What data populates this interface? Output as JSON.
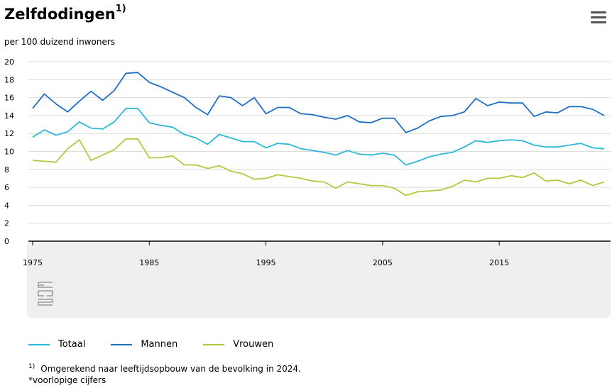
{
  "chart_data": {
    "type": "line",
    "title": "Zelfdodingen",
    "title_footnote_mark": "1)",
    "subtitle": "per 100 duizend inwoners",
    "x": [
      1975,
      1976,
      1977,
      1978,
      1979,
      1980,
      1981,
      1982,
      1983,
      1984,
      1985,
      1986,
      1987,
      1988,
      1989,
      1990,
      1991,
      1992,
      1993,
      1994,
      1995,
      1996,
      1997,
      1998,
      1999,
      2000,
      2001,
      2002,
      2003,
      2004,
      2005,
      2006,
      2007,
      2008,
      2009,
      2010,
      2011,
      2012,
      2013,
      2014,
      2015,
      2016,
      2017,
      2018,
      2019,
      2020,
      2021,
      2022,
      2023,
      2024
    ],
    "xticks": [
      1975,
      1985,
      1995,
      2005,
      2015
    ],
    "yticks": [
      0,
      2,
      4,
      6,
      8,
      10,
      12,
      14,
      16,
      18,
      20
    ],
    "ylim": [
      0,
      20
    ],
    "xlim": [
      1975,
      2024
    ],
    "series": [
      {
        "name": "Totaal",
        "color": "#2DB8D8",
        "values": [
          11.6,
          12.4,
          11.8,
          12.2,
          13.3,
          12.6,
          12.5,
          13.3,
          14.8,
          14.8,
          13.2,
          12.9,
          12.7,
          11.9,
          11.5,
          10.8,
          11.9,
          11.5,
          11.1,
          11.1,
          10.4,
          10.9,
          10.8,
          10.3,
          10.1,
          9.9,
          9.6,
          10.1,
          9.7,
          9.6,
          9.8,
          9.6,
          8.5,
          8.9,
          9.4,
          9.7,
          9.9,
          10.5,
          11.2,
          11.0,
          11.2,
          11.3,
          11.2,
          10.7,
          10.5,
          10.5,
          10.7,
          10.9,
          10.4,
          10.3
        ]
      },
      {
        "name": "Mannen",
        "color": "#1F6FC4",
        "values": [
          14.8,
          16.4,
          15.3,
          14.4,
          15.6,
          16.7,
          15.7,
          16.8,
          18.7,
          18.8,
          17.7,
          17.2,
          16.6,
          16.0,
          14.9,
          14.1,
          16.2,
          16.0,
          15.1,
          16.0,
          14.2,
          14.9,
          14.9,
          14.2,
          14.1,
          13.8,
          13.6,
          14.0,
          13.3,
          13.2,
          13.7,
          13.7,
          12.1,
          12.6,
          13.4,
          13.9,
          14.0,
          14.4,
          15.9,
          15.1,
          15.5,
          15.4,
          15.4,
          13.9,
          14.4,
          14.3,
          15.0,
          15.0,
          14.7,
          14.0
        ]
      },
      {
        "name": "Vrouwen",
        "color": "#AECB3F",
        "values": [
          9.0,
          8.9,
          8.8,
          10.3,
          11.3,
          9.0,
          9.6,
          10.2,
          11.4,
          11.4,
          9.3,
          9.3,
          9.5,
          8.5,
          8.5,
          8.1,
          8.4,
          7.8,
          7.5,
          6.9,
          7.0,
          7.4,
          7.2,
          7.0,
          6.7,
          6.6,
          5.9,
          6.6,
          6.4,
          6.2,
          6.2,
          5.9,
          5.1,
          5.5,
          5.6,
          5.7,
          6.1,
          6.8,
          6.6,
          7.0,
          7.0,
          7.3,
          7.1,
          7.6,
          6.7,
          6.8,
          6.4,
          6.8,
          6.2,
          6.6
        ]
      }
    ]
  },
  "legend": {
    "totaal": "Totaal",
    "mannen": "Mannen",
    "vrouwen": "Vrouwen"
  },
  "footnote": {
    "mark": "1)",
    "text": "Omgerekend naar leeftijdsopbouw van de bevolking in 2024.",
    "note": "*voorlopige cijfers"
  },
  "logo_text": "cbs",
  "colors": {
    "grid": "#dcdcdc",
    "axis": "#000000",
    "plot_band": "#efefef"
  }
}
